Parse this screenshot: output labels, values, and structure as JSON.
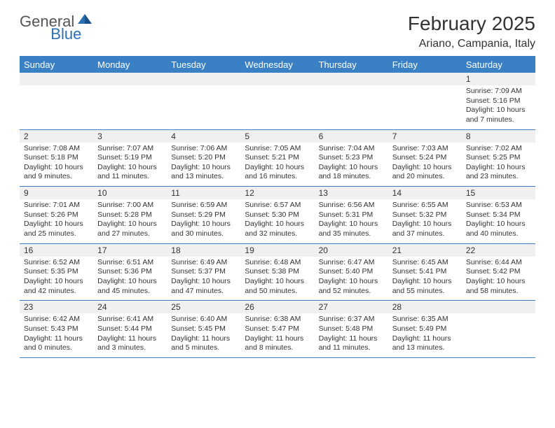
{
  "logo": {
    "general": "General",
    "blue": "Blue"
  },
  "title": "February 2025",
  "subtitle": "Ariano, Campania, Italy",
  "weekdays": [
    "Sunday",
    "Monday",
    "Tuesday",
    "Wednesday",
    "Thursday",
    "Friday",
    "Saturday"
  ],
  "colors": {
    "header_bg": "#3a80c4",
    "row_alt": "#f0f0f0",
    "accent": "#2d6fb5"
  },
  "weeks": [
    {
      "dates": [
        "",
        "",
        "",
        "",
        "",
        "",
        "1"
      ],
      "cells": [
        {
          "sunrise": "",
          "sunset": "",
          "daylight": ""
        },
        {
          "sunrise": "",
          "sunset": "",
          "daylight": ""
        },
        {
          "sunrise": "",
          "sunset": "",
          "daylight": ""
        },
        {
          "sunrise": "",
          "sunset": "",
          "daylight": ""
        },
        {
          "sunrise": "",
          "sunset": "",
          "daylight": ""
        },
        {
          "sunrise": "",
          "sunset": "",
          "daylight": ""
        },
        {
          "sunrise": "Sunrise: 7:09 AM",
          "sunset": "Sunset: 5:16 PM",
          "daylight": "Daylight: 10 hours and 7 minutes."
        }
      ]
    },
    {
      "dates": [
        "2",
        "3",
        "4",
        "5",
        "6",
        "7",
        "8"
      ],
      "cells": [
        {
          "sunrise": "Sunrise: 7:08 AM",
          "sunset": "Sunset: 5:18 PM",
          "daylight": "Daylight: 10 hours and 9 minutes."
        },
        {
          "sunrise": "Sunrise: 7:07 AM",
          "sunset": "Sunset: 5:19 PM",
          "daylight": "Daylight: 10 hours and 11 minutes."
        },
        {
          "sunrise": "Sunrise: 7:06 AM",
          "sunset": "Sunset: 5:20 PM",
          "daylight": "Daylight: 10 hours and 13 minutes."
        },
        {
          "sunrise": "Sunrise: 7:05 AM",
          "sunset": "Sunset: 5:21 PM",
          "daylight": "Daylight: 10 hours and 16 minutes."
        },
        {
          "sunrise": "Sunrise: 7:04 AM",
          "sunset": "Sunset: 5:23 PM",
          "daylight": "Daylight: 10 hours and 18 minutes."
        },
        {
          "sunrise": "Sunrise: 7:03 AM",
          "sunset": "Sunset: 5:24 PM",
          "daylight": "Daylight: 10 hours and 20 minutes."
        },
        {
          "sunrise": "Sunrise: 7:02 AM",
          "sunset": "Sunset: 5:25 PM",
          "daylight": "Daylight: 10 hours and 23 minutes."
        }
      ]
    },
    {
      "dates": [
        "9",
        "10",
        "11",
        "12",
        "13",
        "14",
        "15"
      ],
      "cells": [
        {
          "sunrise": "Sunrise: 7:01 AM",
          "sunset": "Sunset: 5:26 PM",
          "daylight": "Daylight: 10 hours and 25 minutes."
        },
        {
          "sunrise": "Sunrise: 7:00 AM",
          "sunset": "Sunset: 5:28 PM",
          "daylight": "Daylight: 10 hours and 27 minutes."
        },
        {
          "sunrise": "Sunrise: 6:59 AM",
          "sunset": "Sunset: 5:29 PM",
          "daylight": "Daylight: 10 hours and 30 minutes."
        },
        {
          "sunrise": "Sunrise: 6:57 AM",
          "sunset": "Sunset: 5:30 PM",
          "daylight": "Daylight: 10 hours and 32 minutes."
        },
        {
          "sunrise": "Sunrise: 6:56 AM",
          "sunset": "Sunset: 5:31 PM",
          "daylight": "Daylight: 10 hours and 35 minutes."
        },
        {
          "sunrise": "Sunrise: 6:55 AM",
          "sunset": "Sunset: 5:32 PM",
          "daylight": "Daylight: 10 hours and 37 minutes."
        },
        {
          "sunrise": "Sunrise: 6:53 AM",
          "sunset": "Sunset: 5:34 PM",
          "daylight": "Daylight: 10 hours and 40 minutes."
        }
      ]
    },
    {
      "dates": [
        "16",
        "17",
        "18",
        "19",
        "20",
        "21",
        "22"
      ],
      "cells": [
        {
          "sunrise": "Sunrise: 6:52 AM",
          "sunset": "Sunset: 5:35 PM",
          "daylight": "Daylight: 10 hours and 42 minutes."
        },
        {
          "sunrise": "Sunrise: 6:51 AM",
          "sunset": "Sunset: 5:36 PM",
          "daylight": "Daylight: 10 hours and 45 minutes."
        },
        {
          "sunrise": "Sunrise: 6:49 AM",
          "sunset": "Sunset: 5:37 PM",
          "daylight": "Daylight: 10 hours and 47 minutes."
        },
        {
          "sunrise": "Sunrise: 6:48 AM",
          "sunset": "Sunset: 5:38 PM",
          "daylight": "Daylight: 10 hours and 50 minutes."
        },
        {
          "sunrise": "Sunrise: 6:47 AM",
          "sunset": "Sunset: 5:40 PM",
          "daylight": "Daylight: 10 hours and 52 minutes."
        },
        {
          "sunrise": "Sunrise: 6:45 AM",
          "sunset": "Sunset: 5:41 PM",
          "daylight": "Daylight: 10 hours and 55 minutes."
        },
        {
          "sunrise": "Sunrise: 6:44 AM",
          "sunset": "Sunset: 5:42 PM",
          "daylight": "Daylight: 10 hours and 58 minutes."
        }
      ]
    },
    {
      "dates": [
        "23",
        "24",
        "25",
        "26",
        "27",
        "28",
        ""
      ],
      "cells": [
        {
          "sunrise": "Sunrise: 6:42 AM",
          "sunset": "Sunset: 5:43 PM",
          "daylight": "Daylight: 11 hours and 0 minutes."
        },
        {
          "sunrise": "Sunrise: 6:41 AM",
          "sunset": "Sunset: 5:44 PM",
          "daylight": "Daylight: 11 hours and 3 minutes."
        },
        {
          "sunrise": "Sunrise: 6:40 AM",
          "sunset": "Sunset: 5:45 PM",
          "daylight": "Daylight: 11 hours and 5 minutes."
        },
        {
          "sunrise": "Sunrise: 6:38 AM",
          "sunset": "Sunset: 5:47 PM",
          "daylight": "Daylight: 11 hours and 8 minutes."
        },
        {
          "sunrise": "Sunrise: 6:37 AM",
          "sunset": "Sunset: 5:48 PM",
          "daylight": "Daylight: 11 hours and 11 minutes."
        },
        {
          "sunrise": "Sunrise: 6:35 AM",
          "sunset": "Sunset: 5:49 PM",
          "daylight": "Daylight: 11 hours and 13 minutes."
        },
        {
          "sunrise": "",
          "sunset": "",
          "daylight": ""
        }
      ]
    }
  ]
}
